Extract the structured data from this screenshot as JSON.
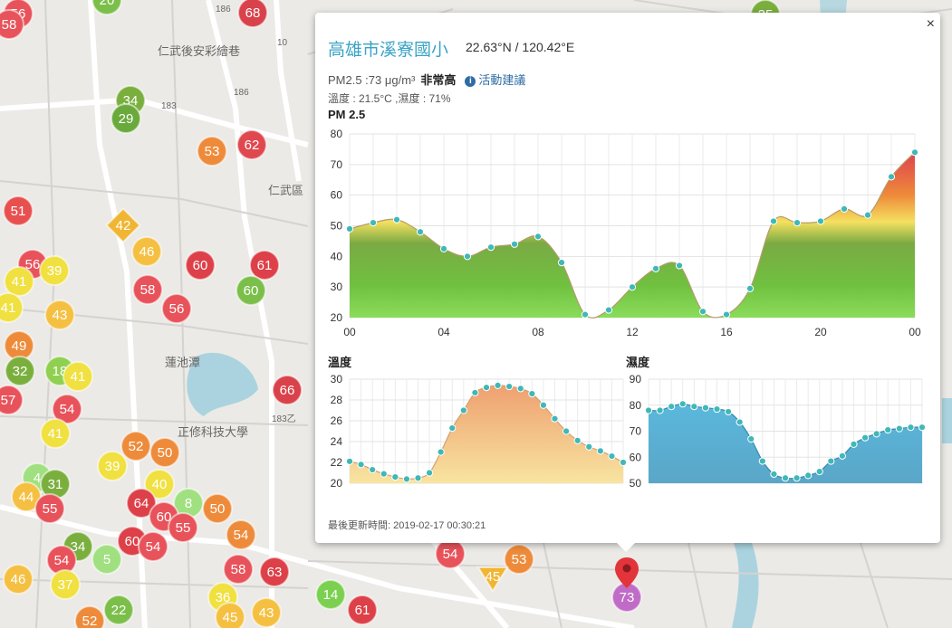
{
  "map_labels": [
    {
      "name": "road-186-top",
      "text": "186"
    },
    {
      "name": "road-186-mid",
      "text": "186"
    },
    {
      "name": "road-183",
      "text": "183"
    },
    {
      "name": "road-10",
      "text": "10"
    },
    {
      "name": "road-183z",
      "text": "183乙"
    },
    {
      "name": "label-renwu-dist",
      "text": "仁武區"
    },
    {
      "name": "label-renwu-temple",
      "text": "仁武後安彩繪巷"
    },
    {
      "name": "label-zhengxiu",
      "text": "正修科技大學"
    },
    {
      "name": "label-lotus",
      "text": "蓮池潭"
    }
  ],
  "markers": [
    {
      "v": "56",
      "c": "#e8525a"
    },
    {
      "v": "58",
      "c": "#e8525a"
    },
    {
      "v": "20",
      "c": "#7bbf4a"
    },
    {
      "v": "68",
      "c": "#d9424a"
    },
    {
      "v": "34",
      "c": "#7aaf3e"
    },
    {
      "v": "29",
      "c": "#6aaa3c"
    },
    {
      "v": "53",
      "c": "#ee8b3a"
    },
    {
      "v": "62",
      "c": "#e04850"
    },
    {
      "v": "51",
      "c": "#e85050"
    },
    {
      "v": "42",
      "c": "#f0b532",
      "shape": "diamond"
    },
    {
      "v": "46",
      "c": "#f5c042"
    },
    {
      "v": "60",
      "c": "#dd4048"
    },
    {
      "v": "61",
      "c": "#dd4048"
    },
    {
      "v": "60",
      "c": "#7bbf4a"
    },
    {
      "v": "58",
      "c": "#e8525a"
    },
    {
      "v": "56",
      "c": "#e8525a"
    },
    {
      "v": "56",
      "c": "#e8525a"
    },
    {
      "v": "39",
      "c": "#f0e040"
    },
    {
      "v": "41",
      "c": "#f0e040"
    },
    {
      "v": "41",
      "c": "#f0e040"
    },
    {
      "v": "43",
      "c": "#f5c042"
    },
    {
      "v": "49",
      "c": "#ee8b3a"
    },
    {
      "v": "32",
      "c": "#7aaf3e"
    },
    {
      "v": "18",
      "c": "#90d050"
    },
    {
      "v": "41",
      "c": "#f0e040"
    },
    {
      "v": "66",
      "c": "#d9424a"
    },
    {
      "v": "57",
      "c": "#e8525a"
    },
    {
      "v": "54",
      "c": "#e8525a"
    },
    {
      "v": "41",
      "c": "#f0e040"
    },
    {
      "v": "52",
      "c": "#ee8b3a"
    },
    {
      "v": "50",
      "c": "#ee8b3a"
    },
    {
      "v": "39",
      "c": "#f0e040"
    },
    {
      "v": "40",
      "c": "#f0e040"
    },
    {
      "v": "4",
      "c": "#a0e080"
    },
    {
      "v": "31",
      "c": "#7aaf3e"
    },
    {
      "v": "8",
      "c": "#a0e080"
    },
    {
      "v": "44",
      "c": "#f5c042"
    },
    {
      "v": "55",
      "c": "#e8525a"
    },
    {
      "v": "64",
      "c": "#dd4048"
    },
    {
      "v": "60",
      "c": "#e8525a"
    },
    {
      "v": "55",
      "c": "#e8525a"
    },
    {
      "v": "50",
      "c": "#ee8b3a"
    },
    {
      "v": "54",
      "c": "#ee8b3a"
    },
    {
      "v": "34",
      "c": "#7aaf3e"
    },
    {
      "v": "60",
      "c": "#dd4048"
    },
    {
      "v": "54",
      "c": "#e8525a"
    },
    {
      "v": "5",
      "c": "#a0e080"
    },
    {
      "v": "58",
      "c": "#e8525a"
    },
    {
      "v": "63",
      "c": "#dd4048"
    },
    {
      "v": "46",
      "c": "#f5c042"
    },
    {
      "v": "54",
      "c": "#e8525a"
    },
    {
      "v": "37",
      "c": "#f0e040"
    },
    {
      "v": "22",
      "c": "#7bbf4a"
    },
    {
      "v": "52",
      "c": "#ee8b3a"
    },
    {
      "v": "36",
      "c": "#f0e040"
    },
    {
      "v": "45",
      "c": "#f5c042"
    },
    {
      "v": "43",
      "c": "#f5c042"
    },
    {
      "v": "14",
      "c": "#7bd050"
    },
    {
      "v": "61",
      "c": "#dd4048"
    },
    {
      "v": "54",
      "c": "#e8525a"
    },
    {
      "v": "53",
      "c": "#ee8b3a"
    },
    {
      "v": "45",
      "c": "#f0b532",
      "shape": "triangle"
    },
    {
      "v": "73",
      "c": "#c06cc6"
    },
    {
      "v": "35",
      "c": "#7aaf3e"
    }
  ],
  "popup": {
    "close": "×",
    "station": "高雄市溪寮國小",
    "coords": "22.63°N / 120.42°E",
    "pm_text": "PM2.5 :73 μg/m³",
    "pm_level": "非常高",
    "info_icon": "i",
    "advice_link": "活動建議",
    "temp_humid": "溫度 : 21.5°C ,濕度 : 71%",
    "pm_chart_title": "PM 2.5",
    "temp_chart_title": "溫度",
    "humid_chart_title": "濕度",
    "updated": "最後更新時間: 2019-02-17 00:30:21"
  },
  "chart_data": [
    {
      "type": "area",
      "title": "PM 2.5",
      "x_ticks": [
        "00",
        "04",
        "08",
        "12",
        "16",
        "20",
        "00"
      ],
      "ylim": [
        20,
        80
      ],
      "y_ticks": [
        20,
        30,
        40,
        50,
        60,
        70,
        80
      ],
      "x": [
        0,
        1,
        2,
        3,
        4,
        5,
        6,
        7,
        8,
        9,
        10,
        11,
        12,
        13,
        14,
        15,
        16,
        17,
        18,
        19,
        20,
        21,
        22,
        23,
        24
      ],
      "values": [
        49,
        51,
        52,
        48,
        42.5,
        40,
        43,
        44,
        46.5,
        38,
        21,
        22.5,
        30,
        36,
        37,
        22,
        21,
        29.5,
        51.5,
        51,
        51.5,
        55.5,
        53.5,
        66,
        74
      ]
    },
    {
      "type": "area",
      "title": "溫度",
      "ylim": [
        20,
        30
      ],
      "y_ticks": [
        20,
        22,
        24,
        26,
        28,
        30
      ],
      "x": [
        0,
        1,
        2,
        3,
        4,
        5,
        6,
        7,
        8,
        9,
        10,
        11,
        12,
        13,
        14,
        15,
        16,
        17,
        18,
        19,
        20,
        21,
        22,
        23,
        24
      ],
      "values": [
        22.1,
        21.8,
        21.3,
        20.9,
        20.6,
        20.4,
        20.5,
        21,
        23,
        25.3,
        27,
        28.7,
        29.2,
        29.4,
        29.3,
        29.1,
        28.6,
        27.5,
        26.2,
        25,
        24.1,
        23.5,
        23.1,
        22.6,
        22
      ]
    },
    {
      "type": "area",
      "title": "濕度",
      "ylim": [
        50,
        90
      ],
      "y_ticks": [
        50,
        60,
        70,
        80,
        90
      ],
      "x": [
        0,
        1,
        2,
        3,
        4,
        5,
        6,
        7,
        8,
        9,
        10,
        11,
        12,
        13,
        14,
        15,
        16,
        17,
        18,
        19,
        20,
        21,
        22,
        23,
        24
      ],
      "values": [
        78,
        78,
        79.5,
        80.5,
        79.5,
        79,
        78.5,
        77.5,
        73.5,
        67,
        58.5,
        53.5,
        52,
        52,
        53,
        54.5,
        58.5,
        60.5,
        65,
        67.5,
        69,
        70.5,
        71,
        71.5,
        71.5
      ]
    }
  ]
}
